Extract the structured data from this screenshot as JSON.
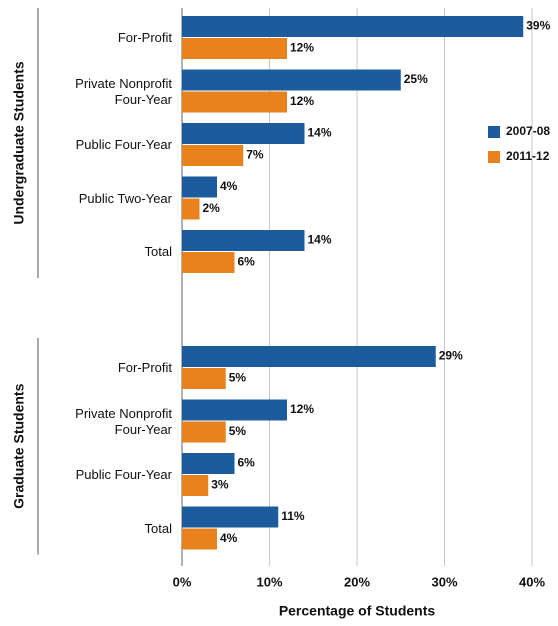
{
  "chart_data": {
    "type": "bar",
    "orientation": "horizontal",
    "xlabel": "Percentage of Students",
    "groups": [
      {
        "name": "Undergraduate Students",
        "categories": [
          "For-Profit",
          "Private Nonprofit Four-Year",
          "Public Four-Year",
          "Public Two-Year",
          "Total"
        ]
      },
      {
        "name": "Graduate Students",
        "categories": [
          "For-Profit",
          "Private Nonprofit Four-Year",
          "Public Four-Year",
          "Total"
        ]
      }
    ],
    "series": [
      {
        "name": "2007-08",
        "color": "#1c5c9c",
        "values": [
          39,
          25,
          14,
          4,
          14,
          29,
          12,
          6,
          11
        ],
        "value_labels": [
          "39%",
          "25%",
          "14%",
          "4%",
          "14%",
          "29%",
          "12%",
          "6%",
          "11%"
        ]
      },
      {
        "name": "2011-12",
        "color": "#e8821c",
        "values": [
          12,
          12,
          7,
          2,
          6,
          5,
          5,
          3,
          4
        ],
        "value_labels": [
          "12%",
          "12%",
          "7%",
          "2%",
          "6%",
          "5%",
          "5%",
          "3%",
          "4%"
        ]
      }
    ],
    "xlim": [
      0,
      40
    ],
    "xticks": [
      {
        "value": 0,
        "label": "0%"
      },
      {
        "value": 10,
        "label": "10%"
      },
      {
        "value": 20,
        "label": "20%"
      },
      {
        "value": 30,
        "label": "30%"
      },
      {
        "value": 40,
        "label": "40%"
      }
    ],
    "grid": true,
    "legend": "right"
  }
}
